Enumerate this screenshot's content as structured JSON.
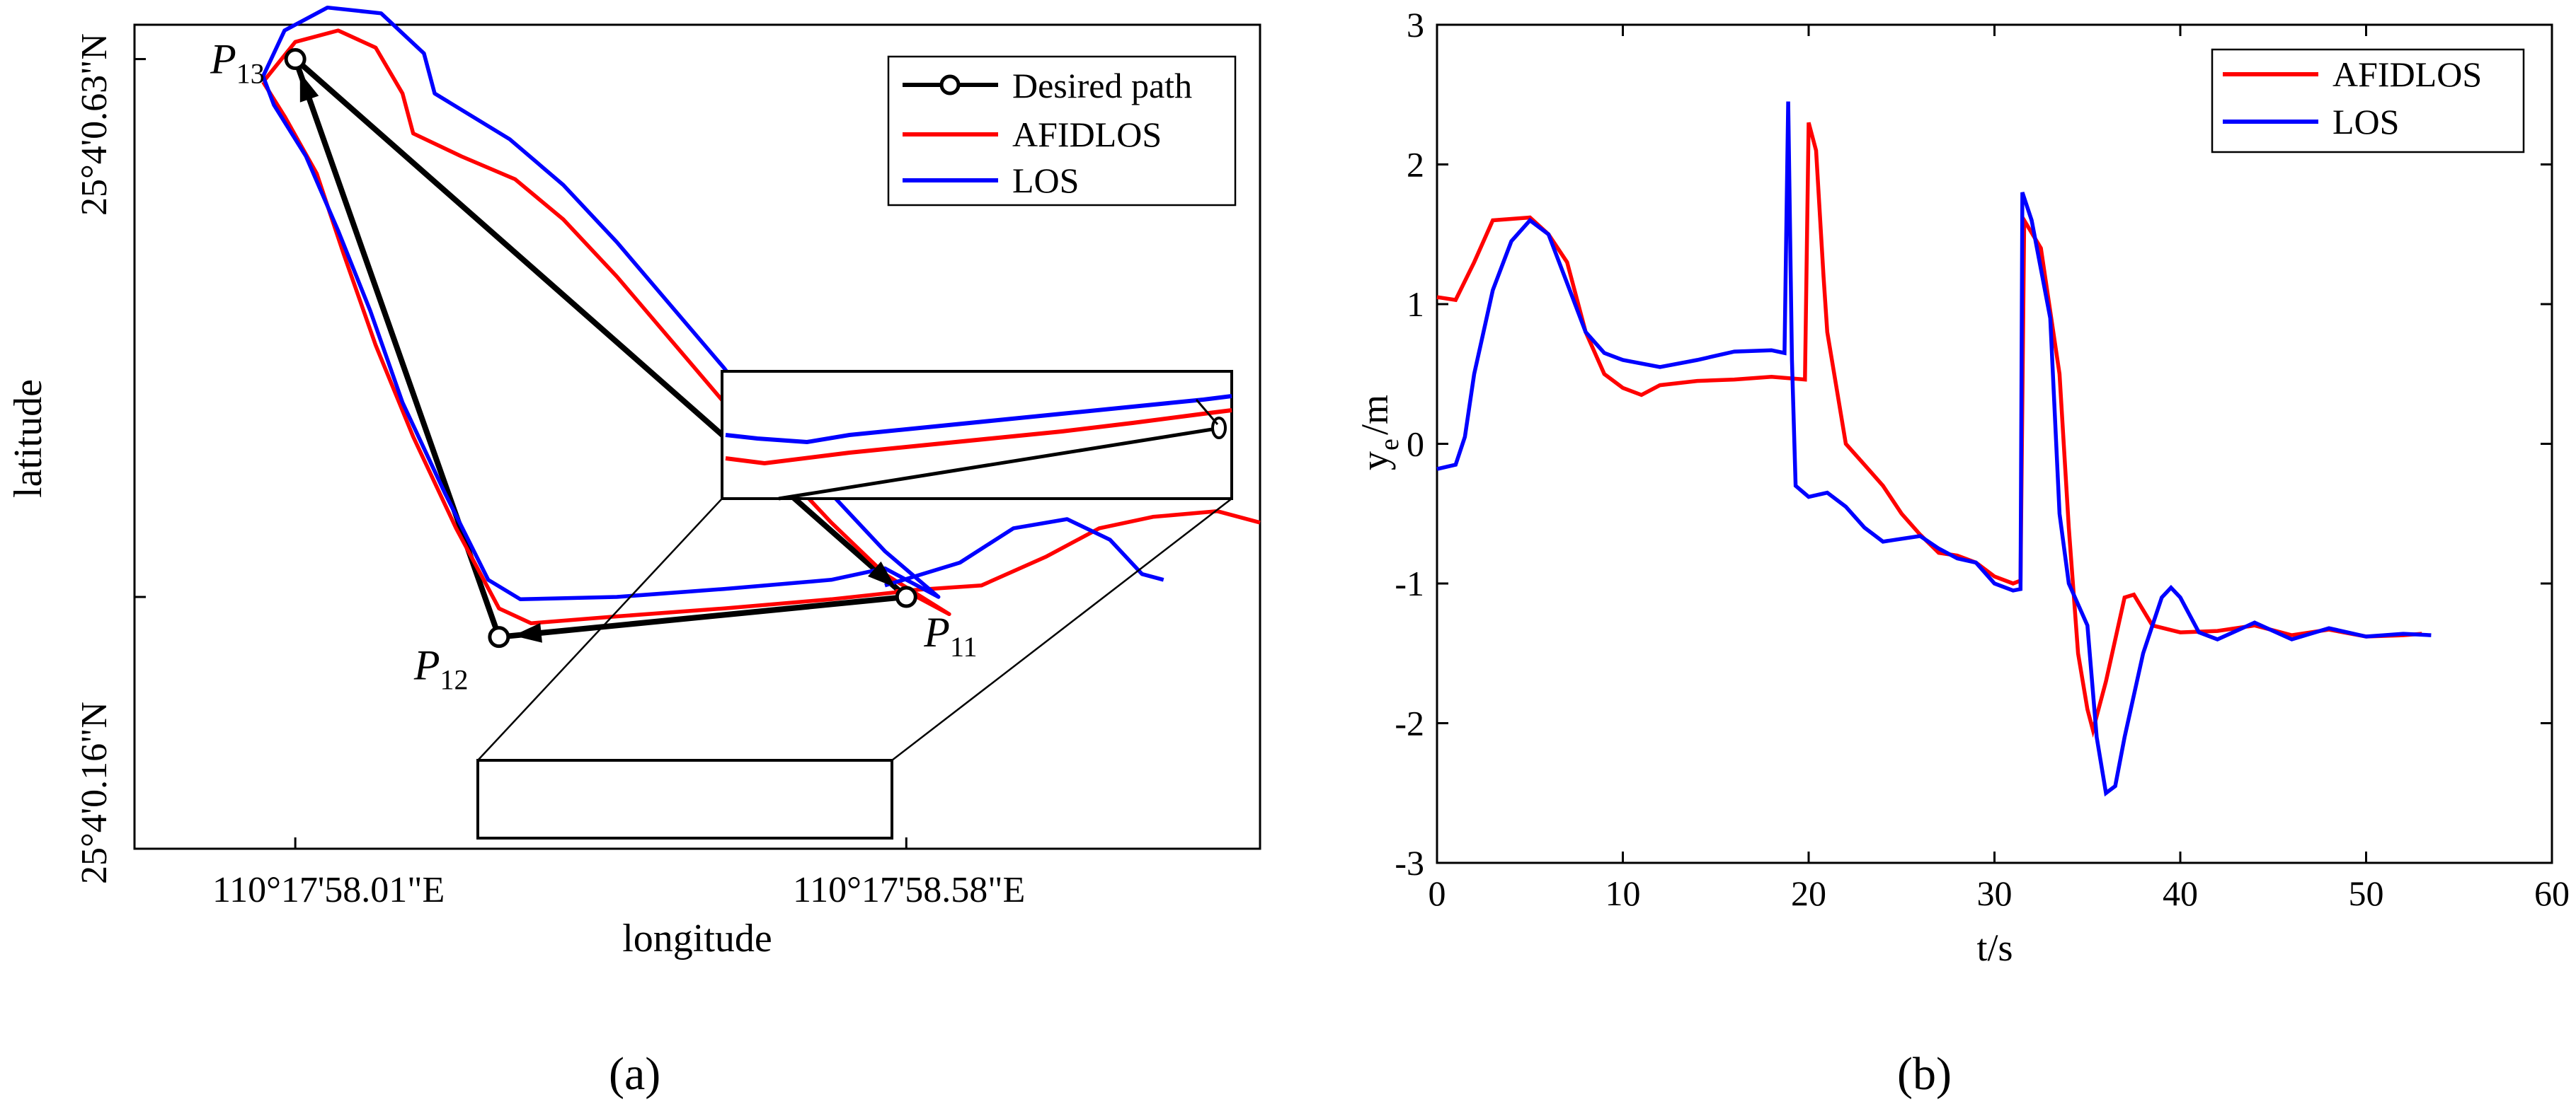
{
  "figure": {
    "panel_a_label": "(a)",
    "panel_b_label": "(b)"
  },
  "colors": {
    "afidlos": "#ff0000",
    "los": "#0000ff",
    "desired": "#000000"
  },
  "chart_data": [
    {
      "type": "line",
      "panel": "a",
      "xlabel": "longitude",
      "ylabel": "latitude",
      "x_ticks": [
        "110°17'58.01\"E",
        "110°17'58.58\"E"
      ],
      "y_ticks": [
        "25°4'0.16\"N",
        "25°4'0.63\"N"
      ],
      "xlim": [
        -0.15,
        0.9
      ],
      "ylim": [
        -0.06,
        0.66
      ],
      "legend": {
        "position": "top-right",
        "entries": [
          "Desired path",
          "AFIDLOS",
          "LOS"
        ]
      },
      "waypoints": [
        {
          "name": "P",
          "sub": "11",
          "x": 0.57,
          "y": 0.16
        },
        {
          "name": "P",
          "sub": "12",
          "x": 0.19,
          "y": 0.125
        },
        {
          "name": "P",
          "sub": "13",
          "x": 0.0,
          "y": 0.63
        }
      ],
      "series": [
        {
          "name": "Desired path",
          "points": [
            [
              0.57,
              0.16
            ],
            [
              0.19,
              0.125
            ],
            [
              0.0,
              0.63
            ],
            [
              0.57,
              0.16
            ]
          ]
        },
        {
          "name": "AFIDLOS",
          "points": [
            [
              -0.03,
              0.61
            ],
            [
              0.0,
              0.645
            ],
            [
              0.04,
              0.655
            ],
            [
              0.075,
              0.64
            ],
            [
              0.1,
              0.6
            ],
            [
              0.11,
              0.565
            ],
            [
              0.155,
              0.545
            ],
            [
              0.205,
              0.525
            ],
            [
              0.25,
              0.49
            ],
            [
              0.3,
              0.44
            ],
            [
              0.35,
              0.385
            ],
            [
              0.4,
              0.33
            ],
            [
              0.45,
              0.275
            ],
            [
              0.5,
              0.225
            ],
            [
              0.55,
              0.18
            ],
            [
              0.61,
              0.145
            ],
            [
              0.57,
              0.165
            ],
            [
              0.5,
              0.158
            ],
            [
              0.4,
              0.15
            ],
            [
              0.3,
              0.143
            ],
            [
              0.22,
              0.137
            ],
            [
              0.19,
              0.15
            ],
            [
              0.15,
              0.22
            ],
            [
              0.11,
              0.3
            ],
            [
              0.075,
              0.38
            ],
            [
              0.045,
              0.46
            ],
            [
              0.02,
              0.53
            ],
            [
              -0.01,
              0.58
            ],
            [
              -0.03,
              0.61
            ]
          ]
        },
        {
          "name": "AFIDLOS_ext",
          "points": [
            [
              0.56,
              0.165
            ],
            [
              0.64,
              0.17
            ],
            [
              0.7,
              0.195
            ],
            [
              0.75,
              0.22
            ],
            [
              0.8,
              0.23
            ],
            [
              0.86,
              0.235
            ],
            [
              0.9,
              0.225
            ]
          ]
        },
        {
          "name": "LOS",
          "points": [
            [
              -0.03,
              0.615
            ],
            [
              -0.01,
              0.655
            ],
            [
              0.03,
              0.675
            ],
            [
              0.08,
              0.67
            ],
            [
              0.12,
              0.635
            ],
            [
              0.13,
              0.6
            ],
            [
              0.2,
              0.56
            ],
            [
              0.25,
              0.52
            ],
            [
              0.3,
              0.47
            ],
            [
              0.35,
              0.415
            ],
            [
              0.4,
              0.36
            ],
            [
              0.45,
              0.3
            ],
            [
              0.5,
              0.25
            ],
            [
              0.55,
              0.2
            ],
            [
              0.6,
              0.16
            ],
            [
              0.55,
              0.185
            ],
            [
              0.5,
              0.175
            ],
            [
              0.4,
              0.167
            ],
            [
              0.3,
              0.16
            ],
            [
              0.21,
              0.158
            ],
            [
              0.18,
              0.175
            ],
            [
              0.14,
              0.25
            ],
            [
              0.1,
              0.33
            ],
            [
              0.07,
              0.41
            ],
            [
              0.04,
              0.48
            ],
            [
              0.01,
              0.545
            ],
            [
              -0.02,
              0.59
            ],
            [
              -0.03,
              0.615
            ]
          ]
        },
        {
          "name": "LOS_ext",
          "points": [
            [
              0.55,
              0.17
            ],
            [
              0.62,
              0.19
            ],
            [
              0.67,
              0.22
            ],
            [
              0.72,
              0.228
            ],
            [
              0.76,
              0.21
            ],
            [
              0.79,
              0.18
            ],
            [
              0.81,
              0.175
            ]
          ]
        }
      ]
    },
    {
      "type": "line",
      "panel": "b",
      "xlabel": "t/s",
      "ylabel": "y",
      "ylabel_sub": "e",
      "ylabel_suffix": "/m",
      "xlim": [
        0,
        60
      ],
      "ylim": [
        -3,
        3
      ],
      "x_ticks": [
        0,
        10,
        20,
        30,
        40,
        50,
        60
      ],
      "y_ticks": [
        -3,
        -2,
        -1,
        0,
        1,
        2,
        3
      ],
      "legend": {
        "position": "top-right",
        "entries": [
          "AFIDLOS",
          "LOS"
        ]
      },
      "series": [
        {
          "name": "AFIDLOS",
          "points": [
            [
              0,
              1.05
            ],
            [
              1,
              1.03
            ],
            [
              2,
              1.3
            ],
            [
              3,
              1.6
            ],
            [
              5,
              1.62
            ],
            [
              6,
              1.5
            ],
            [
              7,
              1.3
            ],
            [
              8,
              0.8
            ],
            [
              9,
              0.5
            ],
            [
              10,
              0.4
            ],
            [
              11,
              0.35
            ],
            [
              12,
              0.42
            ],
            [
              14,
              0.45
            ],
            [
              16,
              0.46
            ],
            [
              18,
              0.48
            ],
            [
              19.8,
              0.46
            ],
            [
              20,
              2.3
            ],
            [
              20.4,
              2.1
            ],
            [
              20.8,
              1.2
            ],
            [
              21,
              0.8
            ],
            [
              22,
              0.0
            ],
            [
              23,
              -0.15
            ],
            [
              24,
              -0.3
            ],
            [
              25,
              -0.5
            ],
            [
              26,
              -0.65
            ],
            [
              27,
              -0.78
            ],
            [
              28,
              -0.8
            ],
            [
              29,
              -0.85
            ],
            [
              30,
              -0.95
            ],
            [
              31,
              -1.0
            ],
            [
              31.4,
              -0.98
            ],
            [
              31.6,
              1.6
            ],
            [
              32.5,
              1.4
            ],
            [
              33.5,
              0.5
            ],
            [
              34,
              -0.6
            ],
            [
              34.5,
              -1.5
            ],
            [
              35,
              -1.9
            ],
            [
              35.3,
              -2.05
            ],
            [
              36,
              -1.7
            ],
            [
              37,
              -1.1
            ],
            [
              37.5,
              -1.08
            ],
            [
              38.5,
              -1.3
            ],
            [
              40,
              -1.35
            ],
            [
              42,
              -1.34
            ],
            [
              44,
              -1.3
            ],
            [
              46,
              -1.37
            ],
            [
              48,
              -1.33
            ],
            [
              50,
              -1.38
            ],
            [
              52,
              -1.37
            ],
            [
              53,
              -1.36
            ]
          ]
        },
        {
          "name": "LOS",
          "points": [
            [
              0,
              -0.18
            ],
            [
              1,
              -0.15
            ],
            [
              1.5,
              0.05
            ],
            [
              2,
              0.5
            ],
            [
              3,
              1.1
            ],
            [
              4,
              1.45
            ],
            [
              5,
              1.6
            ],
            [
              6,
              1.5
            ],
            [
              7,
              1.15
            ],
            [
              8,
              0.8
            ],
            [
              9,
              0.65
            ],
            [
              10,
              0.6
            ],
            [
              12,
              0.55
            ],
            [
              14,
              0.6
            ],
            [
              16,
              0.66
            ],
            [
              18,
              0.67
            ],
            [
              18.7,
              0.65
            ],
            [
              18.9,
              2.45
            ],
            [
              19.1,
              0.6
            ],
            [
              19.3,
              -0.3
            ],
            [
              20,
              -0.38
            ],
            [
              21,
              -0.35
            ],
            [
              22,
              -0.45
            ],
            [
              23,
              -0.6
            ],
            [
              24,
              -0.7
            ],
            [
              25,
              -0.68
            ],
            [
              26,
              -0.66
            ],
            [
              27,
              -0.75
            ],
            [
              28,
              -0.82
            ],
            [
              29,
              -0.85
            ],
            [
              30,
              -1.0
            ],
            [
              31,
              -1.05
            ],
            [
              31.4,
              -1.04
            ],
            [
              31.5,
              1.8
            ],
            [
              32,
              1.6
            ],
            [
              33,
              0.9
            ],
            [
              33.5,
              -0.5
            ],
            [
              34,
              -1.0
            ],
            [
              35,
              -1.3
            ],
            [
              35.5,
              -2.1
            ],
            [
              36,
              -2.5
            ],
            [
              36.5,
              -2.45
            ],
            [
              37,
              -2.1
            ],
            [
              38,
              -1.5
            ],
            [
              39,
              -1.1
            ],
            [
              39.5,
              -1.03
            ],
            [
              40,
              -1.1
            ],
            [
              41,
              -1.35
            ],
            [
              42,
              -1.4
            ],
            [
              44,
              -1.28
            ],
            [
              46,
              -1.4
            ],
            [
              48,
              -1.32
            ],
            [
              50,
              -1.38
            ],
            [
              52,
              -1.36
            ],
            [
              53.5,
              -1.37
            ]
          ]
        }
      ]
    }
  ]
}
